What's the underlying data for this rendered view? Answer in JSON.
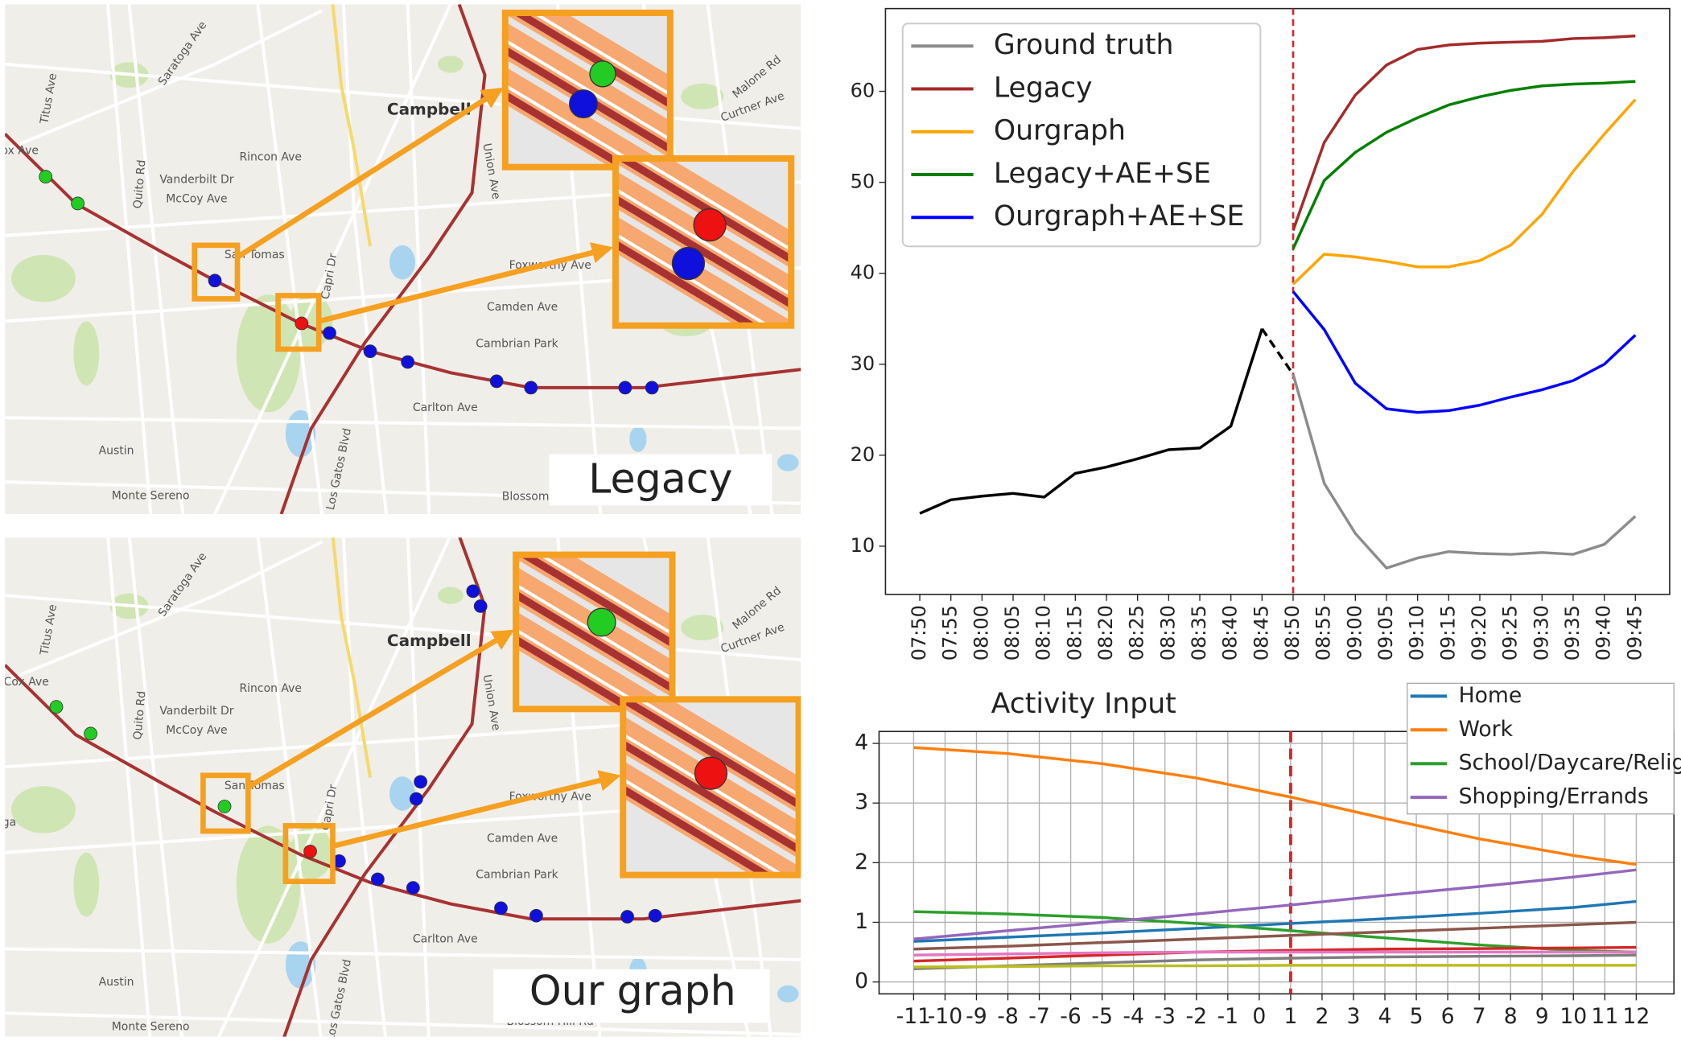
{
  "maps": [
    {
      "caption": "Legacy",
      "labels": [
        "Campbell",
        "Saratoga Ave",
        "Titus Ave",
        "Quito Rd",
        "Vanderbilt Dr",
        "McCoy Ave",
        "Rincon Ave",
        "Camden Ave",
        "Cambrian Park",
        "Carlton Ave",
        "Austin",
        "Monte Sereno",
        "Foxworthy Ave",
        "Union Ave",
        "Malone Rd",
        "Curtner Ave",
        "Los Gatos Blvd",
        "Capri Dr",
        "Blossom",
        "San Tomas",
        "ox Ave"
      ]
    },
    {
      "caption": "Our graph",
      "labels": [
        "Campbell",
        "Saratoga Ave",
        "Titus Ave",
        "Quito Rd",
        "Vanderbilt Dr",
        "McCoy Ave",
        "Rincon Ave",
        "Camden Ave",
        "Cambrian Park",
        "Carlton Ave",
        "Austin",
        "Monte Sereno",
        "Foxworthy Ave",
        "Union Ave",
        "Malone Rd",
        "Curtner Ave",
        "Los Gatos Blvd",
        "Capri Dr",
        "Blossom Hill Rd",
        "San Tomas",
        "Cox Ave",
        "ga"
      ]
    }
  ],
  "chart_data": [
    {
      "type": "line",
      "categories": [
        "07:50",
        "07:55",
        "08:00",
        "08:05",
        "08:10",
        "08:15",
        "08:20",
        "08:25",
        "08:30",
        "08:35",
        "08:40",
        "08:45",
        "08:50",
        "08:55",
        "09:00",
        "09:05",
        "09:10",
        "09:15",
        "09:20",
        "09:25",
        "09:30",
        "09:35",
        "09:40",
        "09:45"
      ],
      "series": [
        {
          "name": "Ground truth",
          "color": "#8c8c8c",
          "values": [
            13.6,
            15.1,
            15.5,
            15.8,
            15.4,
            18.0,
            18.7,
            19.6,
            20.6,
            20.8,
            23.2,
            33.9,
            28.9,
            16.9,
            11.4,
            7.6,
            8.7,
            9.4,
            9.2,
            9.1,
            9.3,
            9.1,
            10.2,
            13.3
          ]
        },
        {
          "name": "Legacy",
          "color": "#a52a2a",
          "values": [
            null,
            null,
            null,
            null,
            null,
            null,
            null,
            null,
            null,
            null,
            null,
            null,
            44.7,
            54.4,
            59.6,
            62.9,
            64.6,
            65.1,
            65.3,
            65.4,
            65.5,
            65.8,
            65.9,
            66.1
          ]
        },
        {
          "name": "Ourgraph",
          "color": "#ffa500",
          "values": [
            null,
            null,
            null,
            null,
            null,
            null,
            null,
            null,
            null,
            null,
            null,
            null,
            38.8,
            42.1,
            41.8,
            41.3,
            40.7,
            40.7,
            41.4,
            43.1,
            46.5,
            51.2,
            55.3,
            59.1
          ]
        },
        {
          "name": "Legacy+AE+SE",
          "color": "#008000",
          "values": [
            null,
            null,
            null,
            null,
            null,
            null,
            null,
            null,
            null,
            null,
            null,
            null,
            42.7,
            50.2,
            53.3,
            55.5,
            57.1,
            58.5,
            59.4,
            60.1,
            60.6,
            60.8,
            60.9,
            61.1
          ]
        },
        {
          "name": "Ourgraph+AE+SE",
          "color": "#0000ff",
          "values": [
            null,
            null,
            null,
            null,
            null,
            null,
            null,
            null,
            null,
            null,
            null,
            null,
            38.0,
            33.8,
            27.9,
            25.1,
            24.7,
            24.9,
            25.5,
            26.4,
            27.2,
            28.2,
            30.0,
            33.2
          ]
        }
      ],
      "history_color": "#000000",
      "vline": {
        "x": "08:50",
        "color": "#d62728"
      },
      "ylim": [
        4.7,
        69.1
      ],
      "yticks": [
        10,
        20,
        30,
        40,
        50,
        60
      ],
      "legend": "upper left",
      "grid": false
    },
    {
      "type": "line",
      "title": "Activity Input",
      "x": [
        -11,
        -8,
        -5,
        -2,
        1,
        4,
        7,
        10,
        12
      ],
      "series": [
        {
          "name": "Home",
          "color": "#1f77b4",
          "values": [
            0.68,
            0.75,
            0.82,
            0.9,
            0.98,
            1.06,
            1.15,
            1.25,
            1.35
          ]
        },
        {
          "name": "Work",
          "color": "#ff7f0e",
          "values": [
            3.93,
            3.83,
            3.66,
            3.42,
            3.1,
            2.74,
            2.4,
            2.12,
            1.97
          ]
        },
        {
          "name": "School/Daycare/Religious",
          "color": "#2ca02c",
          "values": [
            1.18,
            1.14,
            1.08,
            0.98,
            0.86,
            0.74,
            0.62,
            0.53,
            0.5
          ]
        },
        {
          "name": "Shopping/Errands",
          "color": "#9467bd",
          "values": [
            0.72,
            0.86,
            1.0,
            1.14,
            1.29,
            1.45,
            1.6,
            1.76,
            1.88
          ]
        },
        {
          "color": "#8c564b",
          "values": [
            0.55,
            0.6,
            0.66,
            0.72,
            0.78,
            0.84,
            0.9,
            0.96,
            1.0
          ]
        },
        {
          "color": "#d62728",
          "values": [
            0.35,
            0.4,
            0.45,
            0.5,
            0.53,
            0.55,
            0.56,
            0.57,
            0.58
          ]
        },
        {
          "color": "#e377c2",
          "values": [
            0.45,
            0.47,
            0.49,
            0.5,
            0.5,
            0.5,
            0.5,
            0.5,
            0.5
          ]
        },
        {
          "color": "#7f7f7f",
          "values": [
            0.22,
            0.27,
            0.32,
            0.37,
            0.4,
            0.42,
            0.43,
            0.44,
            0.45
          ]
        },
        {
          "color": "#bcbd22",
          "values": [
            0.25,
            0.26,
            0.27,
            0.27,
            0.28,
            0.28,
            0.28,
            0.28,
            0.28
          ]
        }
      ],
      "vline": {
        "x": 1,
        "color": "#d62728"
      },
      "xlim": [
        -12.1,
        13.2
      ],
      "xticks": [
        -11,
        -10,
        -9,
        -8,
        -7,
        -6,
        -5,
        -4,
        -3,
        -2,
        -1,
        0,
        1,
        2,
        3,
        4,
        5,
        6,
        7,
        8,
        9,
        10,
        11,
        12
      ],
      "ylim": [
        -0.2,
        4.2
      ],
      "yticks": [
        0,
        1,
        2,
        3,
        4
      ],
      "legend": "upper right",
      "grid": true
    }
  ]
}
